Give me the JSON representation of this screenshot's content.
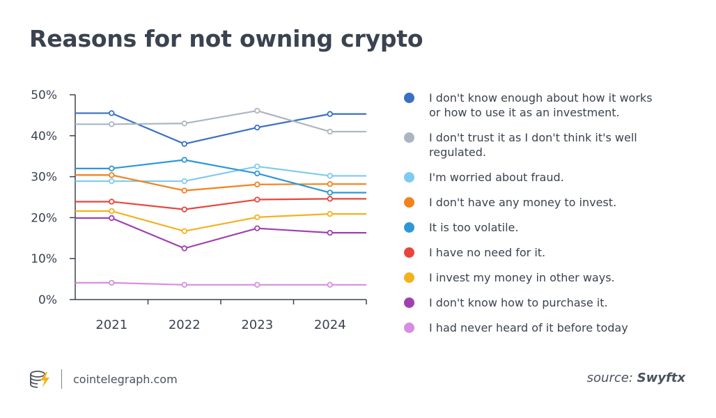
{
  "title": "Reasons for not owning crypto",
  "footer": {
    "site": "cointelegraph.com",
    "logo_icon": "coin-stack-lightning-icon",
    "source_prefix": "source:",
    "source_name": "Swyftx"
  },
  "chart_data": {
    "type": "line",
    "title": "Reasons for not owning crypto",
    "xlabel": "",
    "ylabel": "",
    "x": [
      "2021",
      "2022",
      "2023",
      "2024"
    ],
    "ylim": [
      0,
      50
    ],
    "y_ticks": [
      "0%",
      "10%",
      "20%",
      "30%",
      "40%",
      "50%"
    ],
    "grid": false,
    "legend_placement": "right",
    "series": [
      {
        "name": "I don't know enough about how it works or how to use it as an investment.",
        "color": "#3a6fc2",
        "values": [
          45.5,
          38,
          42,
          45.3
        ]
      },
      {
        "name": "I don't trust it as I don't think it's well regulated.",
        "color": "#aab6c2",
        "values": [
          42.8,
          43,
          46.1,
          41
        ]
      },
      {
        "name": "I'm worried about fraud.",
        "color": "#7fcaf0",
        "values": [
          28.9,
          28.9,
          32.5,
          30.2
        ]
      },
      {
        "name": "I don't have any money to invest.",
        "color": "#f2821c",
        "values": [
          30.4,
          26.6,
          28.1,
          28.2
        ]
      },
      {
        "name": "It is too volatile.",
        "color": "#2f97d6",
        "values": [
          32,
          34.1,
          30.8,
          26.1
        ]
      },
      {
        "name": "I have no need for it.",
        "color": "#e8463c",
        "values": [
          23.9,
          22,
          24.4,
          24.6
        ]
      },
      {
        "name": "I invest my money in other ways.",
        "color": "#f2b21c",
        "values": [
          21.6,
          16.7,
          20.1,
          20.9
        ]
      },
      {
        "name": "I don't know how to purchase it.",
        "color": "#a040b0",
        "values": [
          19.9,
          12.5,
          17.4,
          16.3
        ]
      },
      {
        "name": "I had never heard of it before today",
        "color": "#d68ee0",
        "values": [
          4.1,
          3.6,
          3.6,
          3.6
        ]
      }
    ]
  }
}
